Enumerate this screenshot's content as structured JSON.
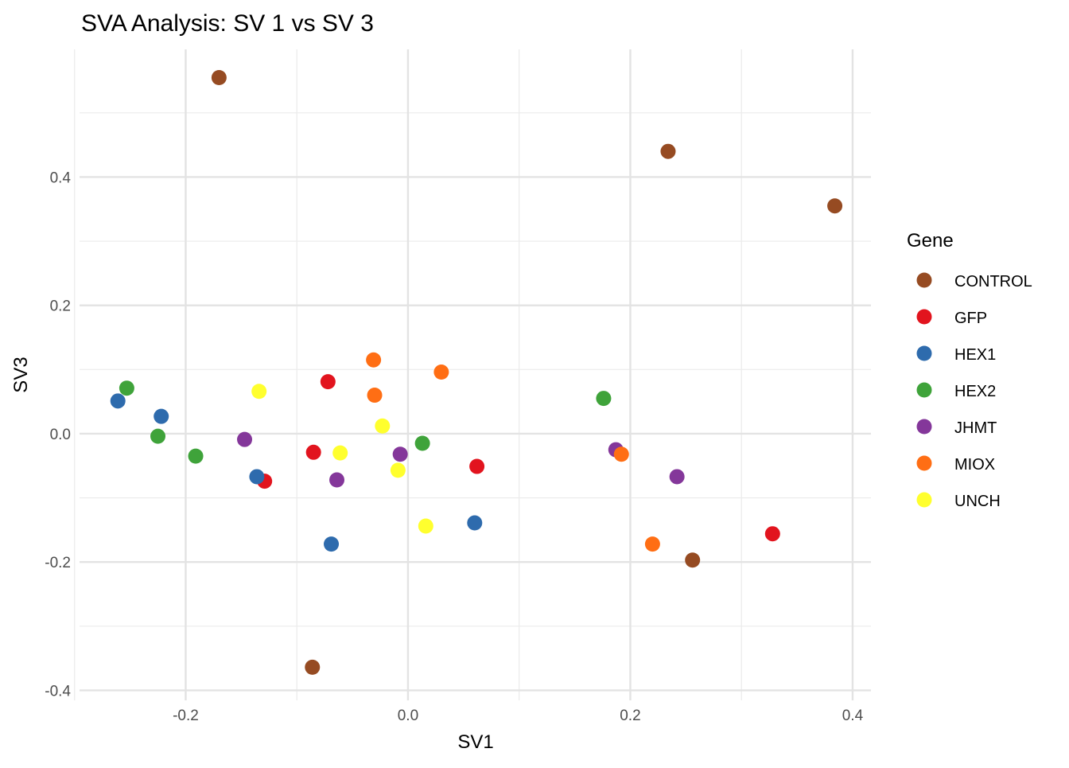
{
  "chart_data": {
    "type": "scatter",
    "title": "SVA Analysis: SV 1  vs SV 3",
    "xlabel": "SV1",
    "ylabel": "SV3",
    "xlim": [
      -0.2955,
      0.4165
    ],
    "ylim": [
      -0.4156,
      0.599
    ],
    "xticks": [
      -0.2,
      0.0,
      0.2,
      0.4
    ],
    "xtick_labels": [
      "-0.2",
      "0.0",
      "0.2",
      "0.4"
    ],
    "yticks": [
      -0.4,
      -0.2,
      0.0,
      0.2,
      0.4
    ],
    "ytick_labels": [
      "-0.4",
      "-0.2",
      "0.0",
      "0.2",
      "0.4"
    ],
    "grid": true,
    "legend": {
      "title": "Gene",
      "placement": "right"
    },
    "series": [
      {
        "name": "CONTROL",
        "color": "#964B22",
        "points": [
          [
            -0.17,
            0.555
          ],
          [
            0.234,
            0.44
          ],
          [
            0.384,
            0.355
          ],
          [
            0.256,
            -0.197
          ],
          [
            -0.086,
            -0.364
          ]
        ]
      },
      {
        "name": "GFP",
        "color": "#E2141E",
        "points": [
          [
            -0.072,
            0.081
          ],
          [
            -0.085,
            -0.029
          ],
          [
            -0.129,
            -0.074
          ],
          [
            0.062,
            -0.051
          ],
          [
            0.328,
            -0.156
          ]
        ]
      },
      {
        "name": "HEX1",
        "color": "#2E6BAD",
        "points": [
          [
            -0.261,
            0.051
          ],
          [
            -0.222,
            0.027
          ],
          [
            -0.136,
            -0.067
          ],
          [
            -0.069,
            -0.172
          ],
          [
            0.06,
            -0.139
          ]
        ]
      },
      {
        "name": "HEX2",
        "color": "#3FA33A",
        "points": [
          [
            -0.253,
            0.071
          ],
          [
            -0.225,
            -0.004
          ],
          [
            -0.191,
            -0.035
          ],
          [
            0.013,
            -0.015
          ],
          [
            0.176,
            0.055
          ]
        ]
      },
      {
        "name": "JHMT",
        "color": "#84379A",
        "points": [
          [
            -0.147,
            -0.009
          ],
          [
            -0.064,
            -0.072
          ],
          [
            -0.007,
            -0.032
          ],
          [
            0.187,
            -0.025
          ],
          [
            0.242,
            -0.067
          ]
        ]
      },
      {
        "name": "MIOX",
        "color": "#FF6E14",
        "points": [
          [
            -0.031,
            0.115
          ],
          [
            -0.03,
            0.06
          ],
          [
            0.03,
            0.096
          ],
          [
            0.192,
            -0.032
          ],
          [
            0.22,
            -0.172
          ]
        ]
      },
      {
        "name": "UNCH",
        "color": "#FFFF2E",
        "points": [
          [
            -0.134,
            0.066
          ],
          [
            -0.061,
            -0.03
          ],
          [
            -0.023,
            0.012
          ],
          [
            -0.009,
            -0.057
          ],
          [
            0.016,
            -0.144
          ]
        ]
      }
    ]
  }
}
